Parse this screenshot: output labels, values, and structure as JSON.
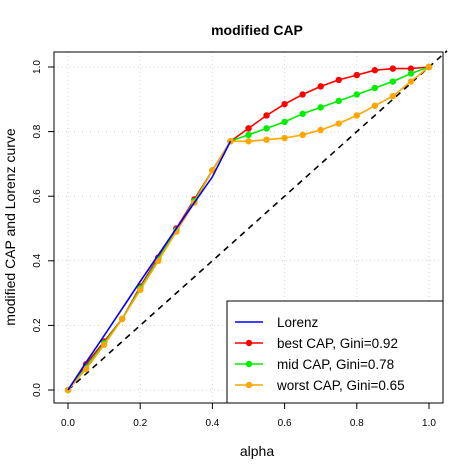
{
  "chart_data": {
    "type": "line",
    "title": "modified CAP",
    "xlabel": "alpha",
    "ylabel": "modified CAP and Lorenz curve",
    "xlim": [
      0,
      1
    ],
    "ylim": [
      0,
      1
    ],
    "xticks": [
      "0.0",
      "0.2",
      "0.4",
      "0.6",
      "0.8",
      "1.0"
    ],
    "yticks": [
      "0.0",
      "0.2",
      "0.4",
      "0.6",
      "0.8",
      "1.0"
    ],
    "grid": true,
    "legend_position": "bottom-right",
    "diagonal_reference": true,
    "series": [
      {
        "name": "Lorenz",
        "color": "#0000ff",
        "markers": false,
        "x": [
          0,
          0.05,
          0.1,
          0.15,
          0.2,
          0.25,
          0.3,
          0.35,
          0.4,
          0.45
        ],
        "y": [
          0,
          0.085,
          0.168,
          0.252,
          0.336,
          0.418,
          0.5,
          0.58,
          0.66,
          0.77
        ]
      },
      {
        "name": "best CAP, Gini=0.92",
        "color": "#ff0000",
        "markers": true,
        "x": [
          0,
          0.05,
          0.1,
          0.15,
          0.2,
          0.25,
          0.3,
          0.35,
          0.4,
          0.45,
          0.5,
          0.55,
          0.6,
          0.65,
          0.7,
          0.75,
          0.8,
          0.85,
          0.9,
          0.95,
          1.0
        ],
        "y": [
          0,
          0.08,
          0.15,
          0.22,
          0.32,
          0.41,
          0.5,
          0.59,
          0.68,
          0.77,
          0.81,
          0.85,
          0.885,
          0.915,
          0.94,
          0.96,
          0.975,
          0.99,
          0.995,
          0.995,
          1.0
        ]
      },
      {
        "name": "mid CAP, Gini=0.78",
        "color": "#00ee00",
        "markers": true,
        "x": [
          0,
          0.05,
          0.1,
          0.15,
          0.2,
          0.25,
          0.3,
          0.35,
          0.4,
          0.45,
          0.5,
          0.55,
          0.6,
          0.65,
          0.7,
          0.75,
          0.8,
          0.85,
          0.9,
          0.95,
          1.0
        ],
        "y": [
          0,
          0.07,
          0.145,
          0.22,
          0.315,
          0.405,
          0.495,
          0.585,
          0.68,
          0.77,
          0.79,
          0.81,
          0.83,
          0.855,
          0.875,
          0.895,
          0.915,
          0.935,
          0.955,
          0.98,
          1.0
        ]
      },
      {
        "name": "worst CAP, Gini=0.65",
        "color": "#ffa500",
        "markers": true,
        "x": [
          0,
          0.05,
          0.1,
          0.15,
          0.2,
          0.25,
          0.3,
          0.35,
          0.4,
          0.45,
          0.5,
          0.55,
          0.6,
          0.65,
          0.7,
          0.75,
          0.8,
          0.85,
          0.9,
          0.95,
          1.0
        ],
        "y": [
          0,
          0.065,
          0.14,
          0.22,
          0.31,
          0.4,
          0.49,
          0.58,
          0.68,
          0.77,
          0.77,
          0.775,
          0.78,
          0.79,
          0.805,
          0.825,
          0.85,
          0.88,
          0.91,
          0.955,
          1.0
        ]
      }
    ]
  }
}
